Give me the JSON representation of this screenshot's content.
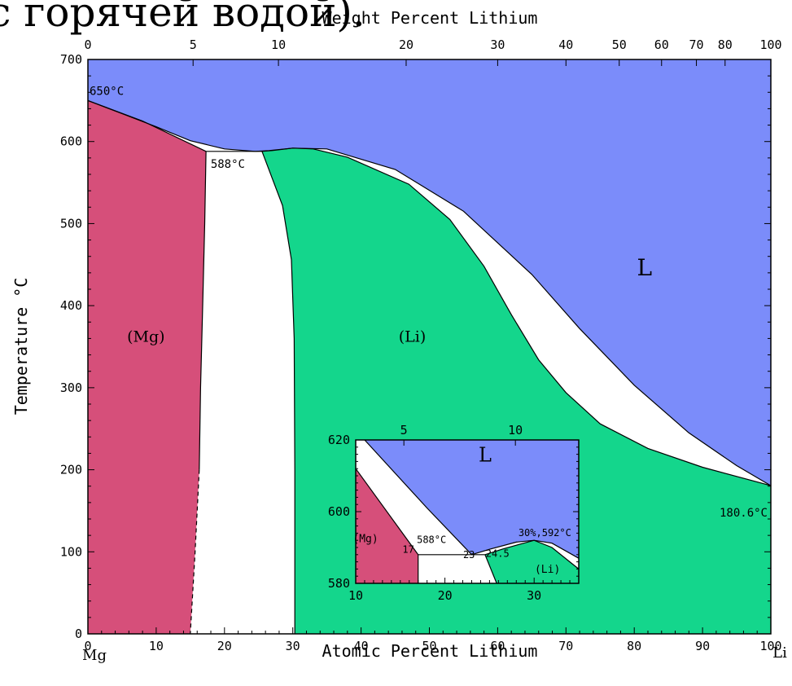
{
  "header_text": "у с горячей водой).",
  "chart_data": {
    "type": "area",
    "subtype": "phase-diagram",
    "title": "",
    "xlabel": "Atomic Percent Lithium",
    "x2label": "Weight Percent Lithium",
    "ylabel": "Temperature °C",
    "xlim": [
      0,
      100
    ],
    "ylim": [
      0,
      700
    ],
    "grid": false,
    "legend": "none",
    "x_ticks": [
      0,
      10,
      20,
      30,
      40,
      50,
      60,
      70,
      80,
      90,
      100
    ],
    "y_ticks": [
      0,
      100,
      200,
      300,
      400,
      500,
      600,
      700
    ],
    "x2_ticks": [
      {
        "label": "0",
        "at": 0
      },
      {
        "label": "5",
        "at": 15.4
      },
      {
        "label": "10",
        "at": 27.9
      },
      {
        "label": "20",
        "at": 46.6
      },
      {
        "label": "30",
        "at": 60
      },
      {
        "label": "40",
        "at": 70
      },
      {
        "label": "50",
        "at": 77.8
      },
      {
        "label": "60",
        "at": 84
      },
      {
        "label": "70",
        "at": 89.1
      },
      {
        "label": "80",
        "at": 93.3
      },
      {
        "label": "100",
        "at": 100
      }
    ],
    "left_element": "Mg",
    "right_element": "Li",
    "colors": {
      "liquid": "#7b8cfa",
      "mg_solution": "#d64f7a",
      "li_solution": "#14d68c",
      "two_phase": "#ffffff"
    },
    "regions": [
      {
        "label": "L",
        "at": [
          81.5,
          437
        ]
      },
      {
        "label": "(Mg)",
        "at": [
          8.5,
          356
        ]
      },
      {
        "label": "(Li)",
        "at": [
          47.5,
          356
        ]
      }
    ],
    "points": [
      {
        "label": "650°C",
        "x": 0,
        "y": 650
      },
      {
        "label": "588°C",
        "x": 17.5,
        "y": 588
      },
      {
        "label": "180.6°C",
        "x": 100,
        "y": 180.6
      }
    ],
    "boundaries": {
      "mg_liquidus": [
        [
          0,
          650
        ],
        [
          5,
          634
        ],
        [
          10,
          618
        ],
        [
          15,
          601
        ],
        [
          20,
          591
        ],
        [
          24.5,
          588
        ]
      ],
      "mg_solidus": [
        [
          0,
          650
        ],
        [
          8,
          625
        ],
        [
          17.3,
          588
        ]
      ],
      "mg_solvus": [
        [
          17.3,
          588
        ],
        [
          17.1,
          500
        ],
        [
          16.8,
          400
        ],
        [
          16.5,
          300
        ],
        [
          16.3,
          200
        ],
        [
          15.7,
          100
        ],
        [
          15,
          0
        ]
      ],
      "li_liquidus": [
        [
          24.5,
          588
        ],
        [
          26.5,
          589
        ],
        [
          30,
          592
        ],
        [
          35,
          591
        ],
        [
          45,
          566
        ],
        [
          55,
          515
        ],
        [
          65,
          438
        ],
        [
          72,
          372
        ],
        [
          80,
          303
        ],
        [
          88,
          245
        ],
        [
          95,
          205
        ],
        [
          100,
          180.6
        ]
      ],
      "li_solidus": [
        [
          25.5,
          588
        ],
        [
          27,
          589
        ],
        [
          30,
          592
        ],
        [
          33,
          591
        ],
        [
          38,
          581
        ],
        [
          47,
          548
        ],
        [
          53,
          505
        ],
        [
          58,
          448
        ],
        [
          62,
          389
        ],
        [
          66,
          334
        ],
        [
          70,
          294
        ],
        [
          75,
          256
        ],
        [
          82,
          226
        ],
        [
          90,
          203
        ],
        [
          100,
          180.6
        ]
      ],
      "li_solvus": [
        [
          25.5,
          588
        ],
        [
          28.5,
          522
        ],
        [
          29.8,
          456
        ],
        [
          30.2,
          360
        ],
        [
          30.3,
          200
        ],
        [
          30.3,
          0
        ]
      ]
    },
    "inset": {
      "xlabel": "",
      "xlim": [
        10,
        35
      ],
      "ylim": [
        580,
        620
      ],
      "x_ticks": [
        10,
        20,
        30
      ],
      "y_ticks": [
        580,
        600,
        620
      ],
      "x2_ticks": [
        {
          "label": "5",
          "at": 15.4
        },
        {
          "label": "10",
          "at": 27.9
        }
      ],
      "regions": [
        {
          "label": "L",
          "at": [
            24.5,
            614
          ]
        },
        {
          "label": "(Mg)",
          "at": [
            11.1,
            591.5
          ]
        },
        {
          "label": "(Li)",
          "at": [
            31.5,
            583
          ]
        }
      ],
      "annotations": [
        {
          "label": "17",
          "at": [
            15.9,
            588.5
          ]
        },
        {
          "label": "588°C",
          "at": [
            18.5,
            591.2
          ]
        },
        {
          "label": "23",
          "at": [
            22.7,
            587.1
          ]
        },
        {
          "label": "24.5",
          "at": [
            25.9,
            587.4
          ]
        },
        {
          "label": "30%,592°C",
          "at": [
            31.2,
            593.2
          ]
        }
      ],
      "boundaries": {
        "mg_liquidus": [
          [
            11,
            620
          ],
          [
            18,
            601
          ],
          [
            23,
            588
          ]
        ],
        "mg_solidus": [
          [
            10,
            612
          ],
          [
            17,
            588
          ]
        ],
        "li_liquidus": [
          [
            23,
            588
          ],
          [
            25,
            589.5
          ],
          [
            28,
            591.5
          ],
          [
            30,
            592
          ],
          [
            32,
            591.2
          ],
          [
            35,
            587
          ]
        ],
        "li_solidus": [
          [
            24.5,
            588
          ],
          [
            26.5,
            589.6
          ],
          [
            30,
            592
          ],
          [
            32,
            590
          ],
          [
            34,
            586
          ],
          [
            35,
            584
          ]
        ],
        "li_solvus": [
          [
            24.5,
            588
          ],
          [
            25.8,
            580
          ]
        ]
      }
    }
  }
}
